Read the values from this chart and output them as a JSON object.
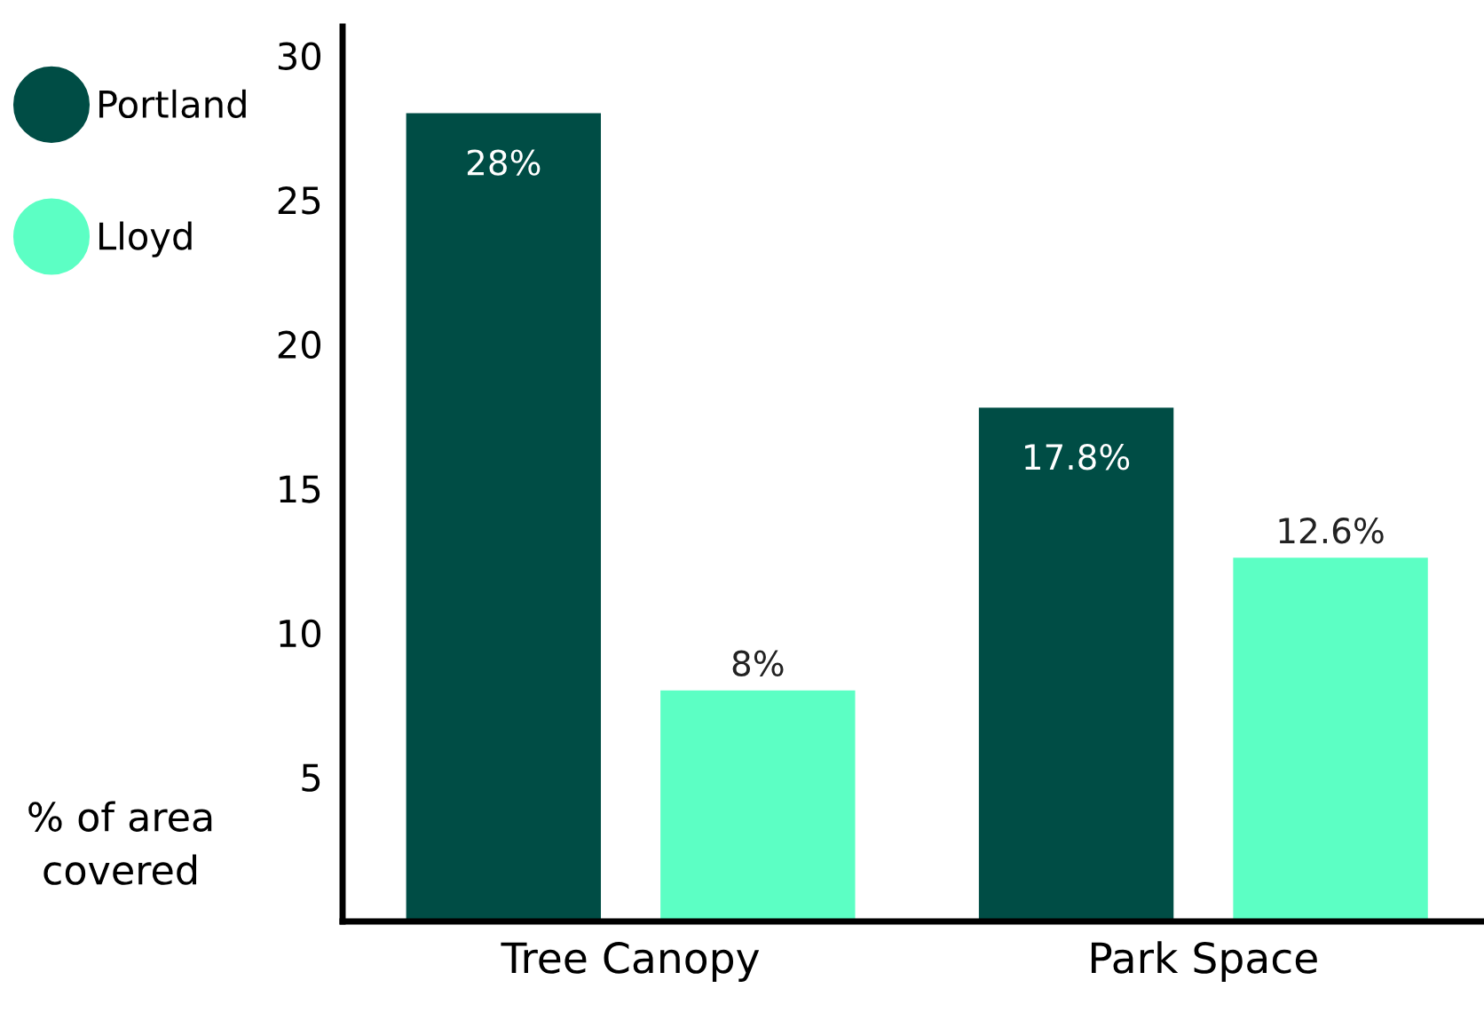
{
  "chart_data": {
    "type": "bar",
    "ylabel": "% of area covered",
    "categories": [
      "Tree Canopy",
      "Park Space"
    ],
    "series": [
      {
        "name": "Portland",
        "color": "#004d45",
        "values": [
          28,
          17.8
        ],
        "value_labels": [
          "28%",
          "17.8%"
        ]
      },
      {
        "name": "Lloyd",
        "color": "#5cffc4",
        "values": [
          8,
          12.6
        ],
        "value_labels": [
          "8%",
          "12.6%"
        ]
      }
    ],
    "ylim": [
      0,
      31
    ],
    "yticks": [
      5,
      10,
      15,
      20,
      25,
      30
    ],
    "legend": "left",
    "grid": false
  }
}
